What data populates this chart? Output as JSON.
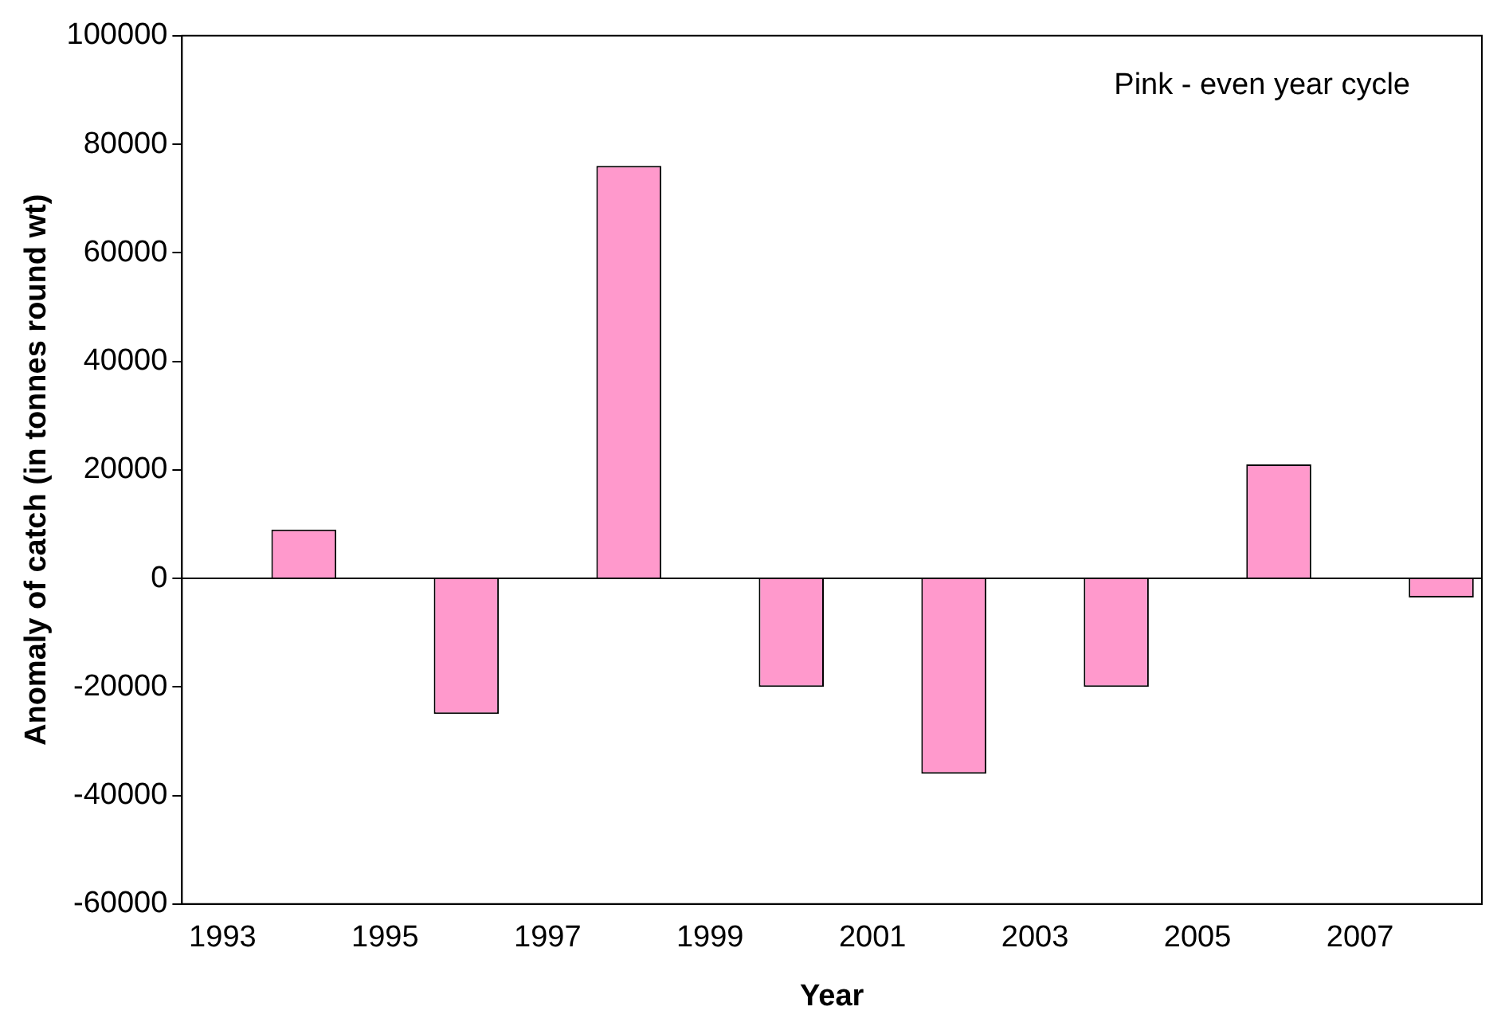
{
  "chart_data": {
    "type": "bar",
    "xlabel": "Year",
    "ylabel": "Anomaly of catch (in tonnes round wt)",
    "categories": [
      "1993",
      null,
      "1995",
      null,
      "1997",
      null,
      "1999",
      null,
      "2001",
      null,
      "2003",
      null,
      "2005",
      null,
      "2007",
      null
    ],
    "values": [
      null,
      9000,
      null,
      -25000,
      null,
      76000,
      null,
      -20000,
      null,
      -36000,
      null,
      -20000,
      null,
      21000,
      null,
      -3500
    ],
    "color": "#ff99cc",
    "ylim": [
      -60000,
      100000
    ],
    "yticks": [
      -60000,
      -40000,
      -20000,
      0,
      20000,
      40000,
      60000,
      80000,
      100000
    ],
    "grid": false,
    "ref_lines": [
      {
        "axis": "y",
        "value": 0,
        "color": "#000000"
      }
    ],
    "legend": false,
    "annotations": [
      "Pink - even year cycle"
    ]
  }
}
